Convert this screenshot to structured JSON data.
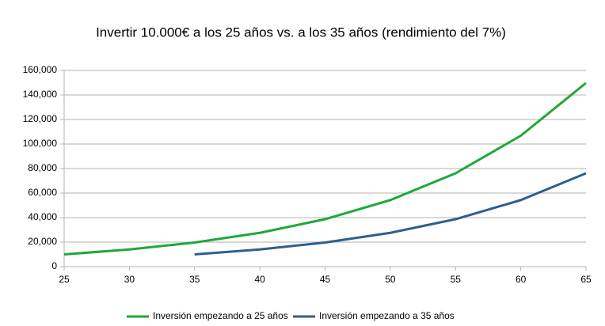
{
  "chart_data": {
    "type": "line",
    "title": "Invertir 10.000€ a los 25 años vs. a los 35 años (rendimiento del 7%)",
    "x": [
      25,
      30,
      35,
      40,
      45,
      50,
      55,
      60,
      65
    ],
    "series": [
      {
        "name": "Inversión empezando a 25 años",
        "color": "#1ea83a",
        "values": [
          10000,
          14026,
          19672,
          27590,
          38697,
          54274,
          76123,
          106766,
          149745
        ]
      },
      {
        "name": "Inversión empezando a 35 años",
        "color": "#2c5f91",
        "values": [
          null,
          null,
          10000,
          14026,
          19672,
          27590,
          38697,
          54274,
          76123
        ]
      }
    ],
    "xlim": [
      25,
      65
    ],
    "xticks": [
      25,
      30,
      35,
      40,
      45,
      50,
      55,
      60,
      65
    ],
    "ylim": [
      0,
      160000
    ],
    "yticks": [
      0,
      {
        "value": 20000,
        "label": "20,000"
      },
      {
        "value": 40000,
        "label": "40,000"
      },
      {
        "value": 60000,
        "label": "60,000"
      },
      {
        "value": 80000,
        "label": "80,000"
      },
      {
        "value": 100000,
        "label": "100,000"
      },
      {
        "value": 120000,
        "label": "120,000"
      },
      {
        "value": 140000,
        "label": "140,000"
      },
      {
        "value": 160000,
        "label": "160,000"
      }
    ],
    "grid": true,
    "legend": "bottom"
  }
}
